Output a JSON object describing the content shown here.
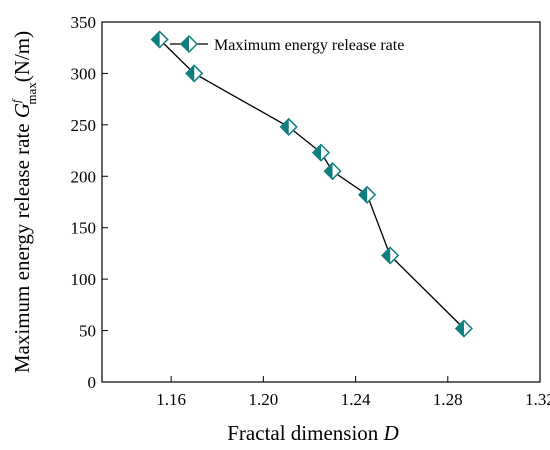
{
  "chart_data": {
    "type": "line",
    "title": "",
    "xlabel": "Fractal dimension",
    "xlabel_symbol": "D",
    "ylabel_prefix": "Maximum energy release rate",
    "ylabel_symbol": "G",
    "ylabel_superscript": "f",
    "ylabel_subscript": "max",
    "ylabel_unit": "(N/m)",
    "xlim": [
      1.13,
      1.32
    ],
    "ylim": [
      0,
      350
    ],
    "xticks": [
      "1.16",
      "1.20",
      "1.24",
      "1.28",
      "1.32"
    ],
    "xtick_values": [
      1.16,
      1.2,
      1.24,
      1.28,
      1.32
    ],
    "yticks": [
      "0",
      "50",
      "100",
      "150",
      "200",
      "250",
      "300",
      "350"
    ],
    "ytick_values": [
      0,
      50,
      100,
      150,
      200,
      250,
      300,
      350
    ],
    "grid": false,
    "legend_position": "top-right",
    "series": [
      {
        "name": "Maximum energy release rate",
        "color": "#0e7e7e",
        "marker": "half-filled-diamond",
        "x": [
          1.155,
          1.17,
          1.211,
          1.225,
          1.23,
          1.245,
          1.255,
          1.287
        ],
        "y": [
          333,
          300,
          248,
          223,
          205,
          182,
          123,
          52
        ]
      }
    ]
  }
}
